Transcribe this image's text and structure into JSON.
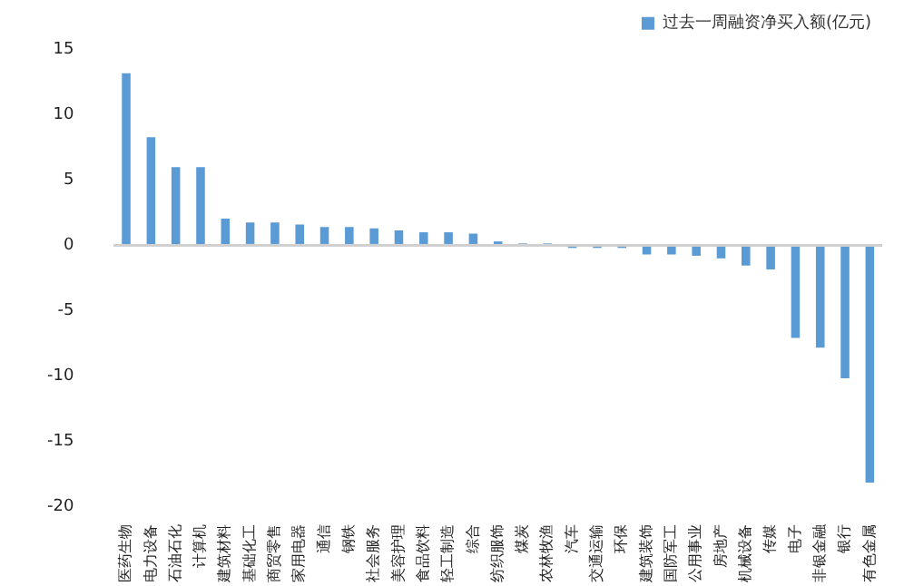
{
  "chart_data": {
    "type": "bar",
    "categories": [
      "医药生物",
      "电力设备",
      "石油石化",
      "计算机",
      "建筑材料",
      "基础化工",
      "商贸零售",
      "家用电器",
      "通信",
      "钢铁",
      "社会服务",
      "美容护理",
      "食品饮料",
      "轻工制造",
      "综合",
      "纺织服饰",
      "煤炭",
      "农林牧渔",
      "汽车",
      "交通运输",
      "环保",
      "建筑装饰",
      "国防军工",
      "公用事业",
      "房地产",
      "机械设备",
      "传媒",
      "电子",
      "非银金融",
      "银行",
      "有色金属"
    ],
    "series": [
      {
        "name": "过去一周融资净买入额(亿元)",
        "color": "#5b9bd5",
        "values": [
          13.2,
          8.3,
          6.0,
          6.0,
          2.05,
          1.75,
          1.75,
          1.6,
          1.4,
          1.4,
          1.3,
          1.15,
          1.0,
          1.0,
          0.9,
          0.3,
          0.15,
          0.15,
          -0.2,
          -0.2,
          -0.2,
          -0.7,
          -0.7,
          -0.8,
          -1.0,
          -1.55,
          -1.85,
          -7.1,
          -7.85,
          -10.2,
          -18.2
        ]
      }
    ],
    "ylim": [
      -20,
      15
    ],
    "yticks": [
      -20,
      -15,
      -10,
      -5,
      0,
      5,
      10,
      15
    ],
    "legend": "top right"
  }
}
